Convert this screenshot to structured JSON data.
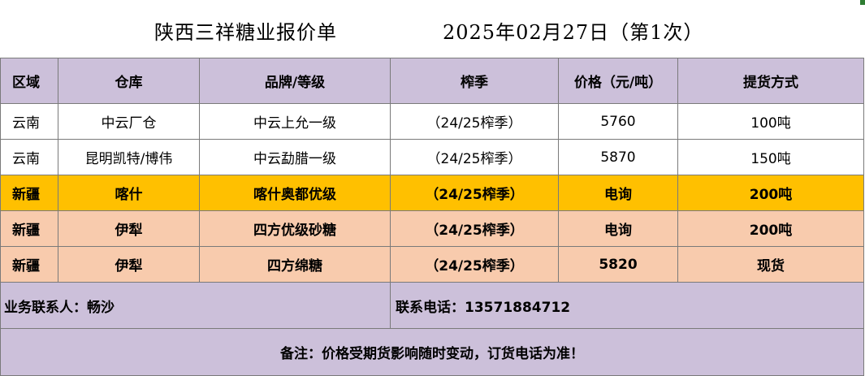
{
  "title": {
    "main": "陕西三祥糖业报价单",
    "date": "2025年02月27日（第1次）"
  },
  "headers": [
    "区域",
    "仓库",
    "品牌/等级",
    "榨季",
    "价格（元/吨）",
    "提货方式"
  ],
  "rows": [
    {
      "region": "云南",
      "warehouse": "中云厂仓",
      "brand": "中云上允一级",
      "season": "（24/25榨季）",
      "price": "5760",
      "pickup": "100吨",
      "style": "white"
    },
    {
      "region": "云南",
      "warehouse": "昆明凯特/博伟",
      "brand": "中云勐腊一级",
      "season": "（24/25榨季）",
      "price": "5870",
      "pickup": "150吨",
      "style": "white"
    },
    {
      "region": "新疆",
      "warehouse": "喀什",
      "brand": "喀什奥都优级",
      "season": "（24/25榨季）",
      "price": "电询",
      "pickup": "200吨",
      "style": "gold"
    },
    {
      "region": "新疆",
      "warehouse": "伊犁",
      "brand": "四方优级砂糖",
      "season": "（24/25榨季）",
      "price": "电询",
      "pickup": "200吨",
      "style": "peach"
    },
    {
      "region": "新疆",
      "warehouse": "伊犁",
      "brand": "四方绵糖",
      "season": "（24/25榨季）",
      "price": "5820",
      "pickup": "现货",
      "style": "peach"
    }
  ],
  "contact": {
    "person": "业务联系人：畅沙",
    "phone": "联系电话：13571884712"
  },
  "note": "备注：价格受期货影响随时变动，订货电话为准！",
  "colors": {
    "header_bg": "#ccc0da",
    "gold_row": "#ffc000",
    "peach_row": "#f8cbad"
  }
}
